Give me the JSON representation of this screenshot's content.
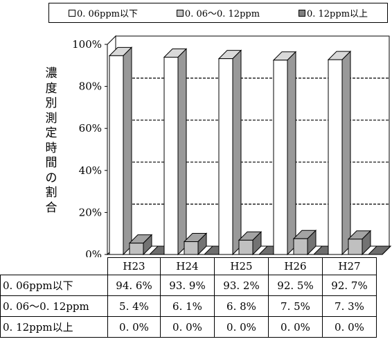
{
  "chart_data": {
    "type": "bar",
    "three_d": true,
    "categories": [
      "H23",
      "H24",
      "H25",
      "H26",
      "H27"
    ],
    "series": [
      {
        "name": "0.06ppm以下",
        "values": [
          94.6,
          93.9,
          93.2,
          92.5,
          92.7
        ],
        "color": "#ffffff"
      },
      {
        "name": "0.06～0.12ppm",
        "values": [
          5.4,
          6.1,
          6.8,
          7.5,
          7.3
        ],
        "color": "#c0c0c0"
      },
      {
        "name": "0.12ppm以上",
        "values": [
          0.0,
          0.0,
          0.0,
          0.0,
          0.0
        ],
        "color": "#808080"
      }
    ],
    "ylabel": "濃度別測定時間の割合",
    "yticks": [
      "0%",
      "20%",
      "40%",
      "60%",
      "80%",
      "100%"
    ],
    "ylim": [
      0,
      100
    ],
    "grid": true,
    "legend_position": "top",
    "table": {
      "header": [
        "H23",
        "H24",
        "H25",
        "H26",
        "H27"
      ],
      "rows": [
        {
          "label": "0. 06ppm以下",
          "cells": [
            "94. 6%",
            "93. 9%",
            "93. 2%",
            "92. 5%",
            "92. 7%"
          ]
        },
        {
          "label": "0. 06～0. 12ppm",
          "cells": [
            "5. 4%",
            "6. 1%",
            "6. 8%",
            "7. 5%",
            "7. 3%"
          ]
        },
        {
          "label": "0. 12ppm以上",
          "cells": [
            "0. 0%",
            "0. 0%",
            "0. 0%",
            "0. 0%",
            "0. 0%"
          ]
        }
      ]
    }
  },
  "legend": [
    {
      "label": "0. 06ppm以下",
      "color": "#ffffff"
    },
    {
      "label": "0. 06～0. 12ppm",
      "color": "#c0c0c0"
    },
    {
      "label": "0. 12ppm以上",
      "color": "#808080"
    }
  ]
}
